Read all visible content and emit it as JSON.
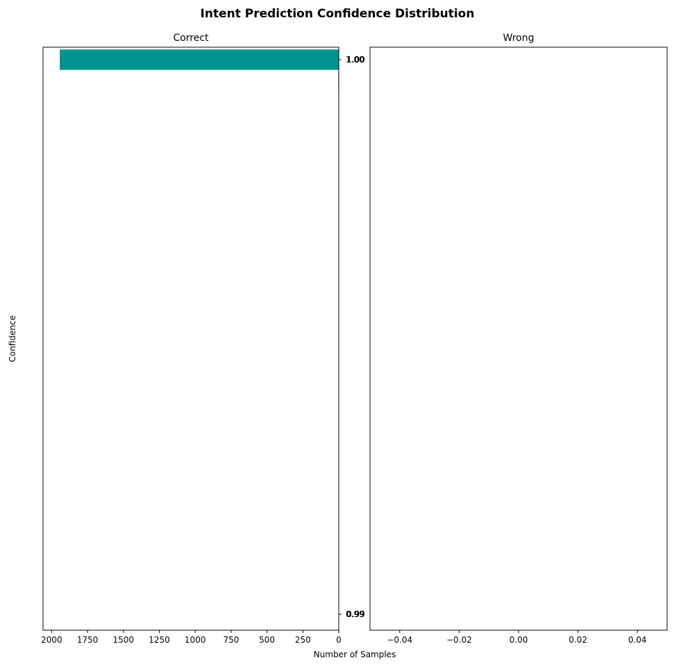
{
  "figure": {
    "title": "Intent Prediction Confidence Distribution",
    "ylabel": "Confidence",
    "xlabel": "Number of Samples"
  },
  "colors": {
    "bar": "#009490",
    "bar_edge": "#ffffff",
    "axis": "#000000"
  },
  "chart_data": [
    {
      "type": "bar",
      "orientation": "horizontal",
      "title": "Correct",
      "x_direction": "inverted",
      "xlim": [
        2060,
        0
      ],
      "xticks": [
        2000,
        1750,
        1500,
        1250,
        1000,
        750,
        500,
        250,
        0
      ],
      "xtick_labels": [
        "2000",
        "1750",
        "1500",
        "1250",
        "1000",
        "750",
        "500",
        "250",
        "0"
      ],
      "ylim": [
        0.99,
        1.0
      ],
      "ytick_labels": [
        {
          "value": 1.0,
          "labels": [
            "1.00",
            "1.00",
            "1.00",
            "1.00"
          ]
        },
        {
          "value": 0.99,
          "labels": [
            "0.99",
            "0.99",
            "0.99",
            "0.99"
          ]
        }
      ],
      "bars": [
        {
          "confidence": 1.0,
          "count": 1945
        },
        {
          "confidence": 0.9996,
          "count": 5
        },
        {
          "confidence": 0.9993,
          "count": 2
        }
      ]
    },
    {
      "type": "bar",
      "orientation": "horizontal",
      "title": "Wrong",
      "xlim": [
        -0.05,
        0.05
      ],
      "xticks": [
        -0.04,
        -0.02,
        0.0,
        0.02,
        0.04
      ],
      "xtick_labels": [
        "−0.04",
        "−0.02",
        "0.00",
        "0.02",
        "0.04"
      ],
      "bars": []
    }
  ]
}
